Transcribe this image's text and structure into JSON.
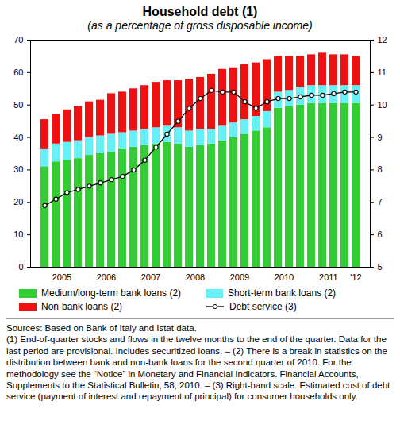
{
  "chart_data": {
    "type": "bar",
    "title": "Household debt (1)",
    "subtitle": "(as a percentage of gross disposable income)",
    "stacked": true,
    "legend": "bottom",
    "categories": [
      null,
      "2005",
      null,
      null,
      null,
      "2006",
      null,
      null,
      null,
      "2007",
      null,
      null,
      null,
      "2008",
      null,
      null,
      null,
      "2009",
      null,
      null,
      null,
      "2010",
      null,
      null,
      null,
      "2011",
      null,
      null,
      "'12"
    ],
    "ylim": [
      0,
      70
    ],
    "yticks": [
      0,
      10,
      20,
      30,
      40,
      50,
      60,
      70
    ],
    "y2lim": [
      5,
      12
    ],
    "y2ticks": [
      5,
      6,
      7,
      8,
      9,
      10,
      11,
      12
    ],
    "series": [
      {
        "name": "Medium/long-term bank loans (2)",
        "color": "#33cc33",
        "values": [
          31,
          32.5,
          33,
          33.5,
          34.5,
          35,
          35.5,
          36.5,
          37,
          37.5,
          38,
          38.5,
          38,
          37,
          37.5,
          38,
          39,
          40,
          41,
          42,
          43,
          49,
          49.5,
          50,
          50.5,
          50.5,
          50.5,
          50.5,
          50.5
        ]
      },
      {
        "name": "Short-term bank loans (2)",
        "color": "#66f0f5",
        "values": [
          5.5,
          5.5,
          5.5,
          5.5,
          5.5,
          5.5,
          5.5,
          5,
          5,
          5,
          5,
          5,
          5,
          5,
          5,
          4.5,
          4.5,
          4.5,
          4.5,
          4.5,
          5,
          5,
          5,
          5.5,
          5.5,
          5.5,
          5.5,
          5.5,
          5.5
        ]
      },
      {
        "name": "Non-bank loans (2)",
        "color": "#ee1111",
        "values": [
          9,
          9,
          10,
          10.5,
          11,
          11,
          12.5,
          12.5,
          13,
          13.5,
          14,
          14,
          14.5,
          16,
          16,
          17,
          17.5,
          17,
          17,
          16.5,
          16,
          11,
          10.5,
          9.5,
          9.5,
          10,
          9.5,
          9.5,
          9
        ]
      },
      {
        "name": "Debt service (3)",
        "type": "line",
        "axis": "y2",
        "color": "#000000",
        "marker": "circle",
        "values": [
          6.9,
          7.1,
          7.3,
          7.4,
          7.5,
          7.6,
          7.7,
          7.8,
          8.0,
          8.3,
          8.7,
          9.1,
          9.5,
          9.9,
          10.2,
          10.45,
          10.4,
          10.4,
          10.1,
          9.9,
          10.1,
          10.2,
          10.2,
          10.25,
          10.3,
          10.3,
          10.35,
          10.4,
          10.4
        ]
      }
    ],
    "sources": "Sources: Based on Bank of Italy and Istat data.",
    "notes": "(1) End-of-quarter stocks and flows in the twelve months to the end of the quarter. Data for the last period are provisional. Includes securitized loans. – (2) There is a break in statistics on the distribution between bank and non-bank loans for the second quarter of 2010. For the methodology see the “Notice” in Monetary and Financial Indicators. Financial Accounts, Supplements to the Statistical Bulletin, 58, 2010. – (3) Right-hand scale. Estimated cost of debt service (payment of interest and repayment of principal) for consumer households only."
  }
}
